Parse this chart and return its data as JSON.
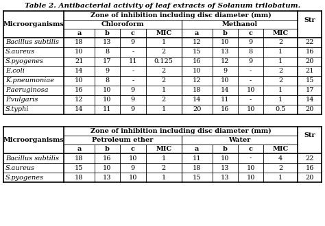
{
  "title": "Table 2. Antibacterial activity of leaf extracts of Solanum trilobatum.",
  "table1": {
    "header_row1": "Zone of inhibition including disc diameter (mm)",
    "header_group1": "Chloroform",
    "header_group2": "Methanol",
    "col_headers": [
      "a",
      "b",
      "c",
      "MIC",
      "a",
      "b",
      "c",
      "MIC"
    ],
    "row_header": "Microorganisms",
    "str_header": "Str",
    "rows": [
      [
        "Bacillus subtilis",
        "18",
        "13",
        "9",
        "1",
        "12",
        "10",
        "9",
        "2",
        "22"
      ],
      [
        "S.aureus",
        "10",
        "8",
        "-",
        "2",
        "15",
        "13",
        "8",
        "1",
        "16"
      ],
      [
        "S.pyogenes",
        "21",
        "17",
        "11",
        "0.125",
        "16",
        "12",
        "9",
        "1",
        "20"
      ],
      [
        "E.coli",
        "14",
        "9",
        "-",
        "2",
        "10",
        "9",
        "-",
        "2",
        "21"
      ],
      [
        "K.pneumoniae",
        "10",
        "8",
        "-",
        "2",
        "12",
        "10",
        "-",
        "2",
        "15"
      ],
      [
        "P.aeruginosa",
        "16",
        "10",
        "9",
        "1",
        "18",
        "14",
        "10",
        "1",
        "17"
      ],
      [
        "P.vulgaris",
        "12",
        "10",
        "9",
        "2",
        "14",
        "11",
        "-",
        "1",
        "14"
      ],
      [
        "S.typhi",
        "14",
        "11",
        "9",
        "1",
        "20",
        "16",
        "10",
        "0.5",
        "20"
      ]
    ]
  },
  "table2": {
    "header_row1": "Zone of inhibition including disc diameter (mm)",
    "header_group1": "Petroleum ether",
    "header_group2": "Water",
    "col_headers": [
      "a",
      "b",
      "c",
      "MIC",
      "a",
      "b",
      "c",
      "MIC"
    ],
    "row_header": "Microorganisms",
    "str_header": "Str",
    "rows": [
      [
        "Bacillus subtilis",
        "18",
        "16",
        "10",
        "1",
        "11",
        "10",
        "-",
        "4",
        "22"
      ],
      [
        "S.aureus",
        "15",
        "10",
        "9",
        "2",
        "18",
        "13",
        "10",
        "2",
        "16"
      ],
      [
        "S.pyogenes",
        "18",
        "13",
        "10",
        "1",
        "15",
        "13",
        "10",
        "1",
        "20"
      ]
    ]
  },
  "bg_color": "#ffffff",
  "line_color": "#000000"
}
